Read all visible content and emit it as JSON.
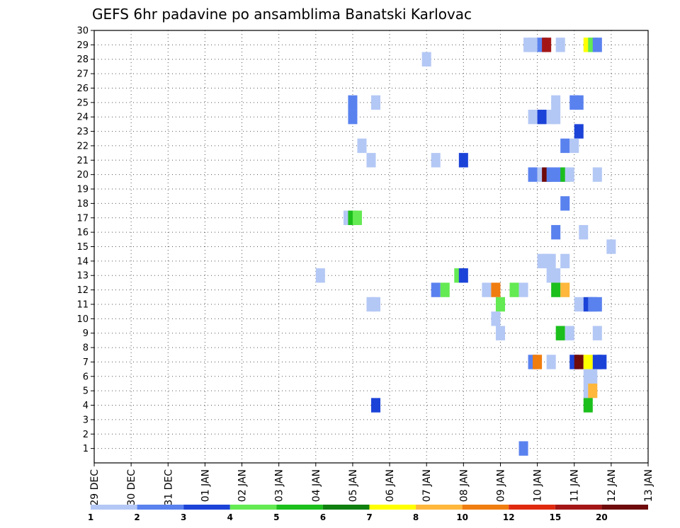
{
  "chart_data": {
    "type": "heatmap",
    "title": "GEFS 6hr padavine po ansamblima Banatski Karlovac",
    "x_ticks": [
      "29 DEC",
      "30 DEC",
      "31 DEC",
      "01 JAN",
      "02 JAN",
      "03 JAN",
      "04 JAN",
      "05 JAN",
      "06 JAN",
      "07 JAN",
      "08 JAN",
      "09 JAN",
      "10 JAN",
      "11 JAN",
      "12 JAN",
      "13 JAN"
    ],
    "y_ticks": [
      "1",
      "2",
      "3",
      "4",
      "5",
      "6",
      "7",
      "8",
      "9",
      "10",
      "11",
      "12",
      "13",
      "14",
      "15",
      "16",
      "17",
      "18",
      "19",
      "20",
      "21",
      "22",
      "23",
      "24",
      "25",
      "26",
      "27",
      "28",
      "29",
      "30"
    ],
    "y_range": [
      0,
      30
    ],
    "x_range_days": [
      0,
      15
    ],
    "grid": true,
    "legend": {
      "placement": "bottom",
      "labels": [
        "1",
        "2",
        "3",
        "4",
        "5",
        "6",
        "7",
        "8",
        "10",
        "12",
        "15",
        "20"
      ],
      "colors": [
        "#b4c8f5",
        "#5a82ef",
        "#1c43d8",
        "#64ea52",
        "#1cbf1c",
        "#0f7f0f",
        "#ffff00",
        "#ffb73c",
        "#f07d10",
        "#e02a10",
        "#a41616",
        "#6e0a0a"
      ]
    },
    "cells": [
      {
        "day": 11.75,
        "member": 29,
        "value": 1
      },
      {
        "day": 11.875,
        "member": 29,
        "value": 1
      },
      {
        "day": 12.125,
        "member": 29,
        "value": 2
      },
      {
        "day": 12.25,
        "member": 29,
        "value": 15
      },
      {
        "day": 12.625,
        "member": 29,
        "value": 1
      },
      {
        "day": 13.375,
        "member": 29,
        "value": 7
      },
      {
        "day": 13.5,
        "member": 29,
        "value": 4
      },
      {
        "day": 13.625,
        "member": 29,
        "value": 2
      },
      {
        "day": 9.0,
        "member": 28,
        "value": 1
      },
      {
        "day": 7.0,
        "member": 25,
        "value": 2
      },
      {
        "day": 7.625,
        "member": 25,
        "value": 1
      },
      {
        "day": 12.5,
        "member": 25,
        "value": 1
      },
      {
        "day": 13.0,
        "member": 25,
        "value": 2
      },
      {
        "day": 13.125,
        "member": 25,
        "value": 2
      },
      {
        "day": 7.0,
        "member": 24,
        "value": 2
      },
      {
        "day": 11.875,
        "member": 24,
        "value": 1
      },
      {
        "day": 12.125,
        "member": 24,
        "value": 3
      },
      {
        "day": 12.375,
        "member": 24,
        "value": 1
      },
      {
        "day": 12.5,
        "member": 24,
        "value": 1
      },
      {
        "day": 13.125,
        "member": 23,
        "value": 3
      },
      {
        "day": 7.25,
        "member": 22,
        "value": 1
      },
      {
        "day": 12.75,
        "member": 22,
        "value": 2
      },
      {
        "day": 13.0,
        "member": 22,
        "value": 1
      },
      {
        "day": 7.5,
        "member": 21,
        "value": 1
      },
      {
        "day": 9.25,
        "member": 21,
        "value": 1
      },
      {
        "day": 10.0,
        "member": 21,
        "value": 3
      },
      {
        "day": 11.875,
        "member": 20,
        "value": 2
      },
      {
        "day": 12.125,
        "member": 20,
        "value": 1
      },
      {
        "day": 12.25,
        "member": 20,
        "value": 20
      },
      {
        "day": 12.375,
        "member": 20,
        "value": 2
      },
      {
        "day": 12.5,
        "member": 20,
        "value": 2
      },
      {
        "day": 12.625,
        "member": 20,
        "value": 2
      },
      {
        "day": 12.75,
        "member": 20,
        "value": 5
      },
      {
        "day": 12.875,
        "member": 20,
        "value": 1
      },
      {
        "day": 13.625,
        "member": 20,
        "value": 1
      },
      {
        "day": 12.75,
        "member": 18,
        "value": 2
      },
      {
        "day": 6.875,
        "member": 17,
        "value": 1
      },
      {
        "day": 7.0,
        "member": 17,
        "value": 5
      },
      {
        "day": 7.125,
        "member": 17,
        "value": 4
      },
      {
        "day": 12.5,
        "member": 16,
        "value": 2
      },
      {
        "day": 13.25,
        "member": 16,
        "value": 1
      },
      {
        "day": 14.0,
        "member": 15,
        "value": 1
      },
      {
        "day": 12.125,
        "member": 14,
        "value": 1
      },
      {
        "day": 12.25,
        "member": 14,
        "value": 1
      },
      {
        "day": 12.375,
        "member": 14,
        "value": 1
      },
      {
        "day": 12.75,
        "member": 14,
        "value": 1
      },
      {
        "day": 6.125,
        "member": 13,
        "value": 1
      },
      {
        "day": 9.875,
        "member": 13,
        "value": 4
      },
      {
        "day": 10.0,
        "member": 13,
        "value": 3
      },
      {
        "day": 12.375,
        "member": 13,
        "value": 1
      },
      {
        "day": 12.5,
        "member": 13,
        "value": 1
      },
      {
        "day": 9.25,
        "member": 12,
        "value": 2
      },
      {
        "day": 9.5,
        "member": 12,
        "value": 4
      },
      {
        "day": 10.625,
        "member": 12,
        "value": 1
      },
      {
        "day": 10.875,
        "member": 12,
        "value": 10
      },
      {
        "day": 11.375,
        "member": 12,
        "value": 4
      },
      {
        "day": 11.625,
        "member": 12,
        "value": 1
      },
      {
        "day": 12.5,
        "member": 12,
        "value": 5
      },
      {
        "day": 12.75,
        "member": 12,
        "value": 8
      },
      {
        "day": 7.5,
        "member": 11,
        "value": 1
      },
      {
        "day": 7.625,
        "member": 11,
        "value": 1
      },
      {
        "day": 11.0,
        "member": 11,
        "value": 4
      },
      {
        "day": 13.125,
        "member": 11,
        "value": 1
      },
      {
        "day": 13.375,
        "member": 11,
        "value": 3
      },
      {
        "day": 13.5,
        "member": 11,
        "value": 2
      },
      {
        "day": 13.625,
        "member": 11,
        "value": 2
      },
      {
        "day": 10.875,
        "member": 10,
        "value": 1
      },
      {
        "day": 11.0,
        "member": 9,
        "value": 1
      },
      {
        "day": 12.625,
        "member": 9,
        "value": 5
      },
      {
        "day": 12.875,
        "member": 9,
        "value": 1
      },
      {
        "day": 13.625,
        "member": 9,
        "value": 1
      },
      {
        "day": 11.875,
        "member": 7,
        "value": 2
      },
      {
        "day": 12.0,
        "member": 7,
        "value": 10
      },
      {
        "day": 12.375,
        "member": 7,
        "value": 1
      },
      {
        "day": 13.0,
        "member": 7,
        "value": 3
      },
      {
        "day": 13.125,
        "member": 7,
        "value": 20
      },
      {
        "day": 13.375,
        "member": 7,
        "value": 7
      },
      {
        "day": 13.625,
        "member": 7,
        "value": 3
      },
      {
        "day": 13.75,
        "member": 7,
        "value": 3
      },
      {
        "day": 13.375,
        "member": 6,
        "value": 1
      },
      {
        "day": 13.5,
        "member": 6,
        "value": 1
      },
      {
        "day": 13.375,
        "member": 5,
        "value": 1
      },
      {
        "day": 13.5,
        "member": 5,
        "value": 8
      },
      {
        "day": 7.625,
        "member": 4,
        "value": 3
      },
      {
        "day": 13.375,
        "member": 4,
        "value": 5
      },
      {
        "day": 11.625,
        "member": 1,
        "value": 2
      }
    ]
  }
}
